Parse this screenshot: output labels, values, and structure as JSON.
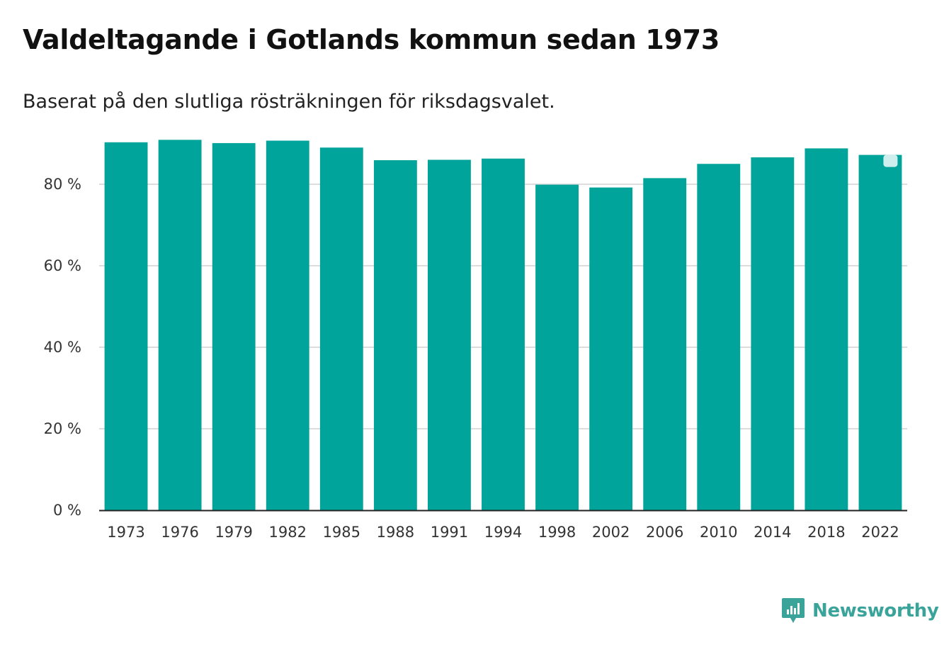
{
  "header": {
    "title": "Valdeltagande i Gotlands kommun sedan 1973",
    "subtitle": "Baserat på den slutliga rösträkningen för riksdagsvalet."
  },
  "brand": {
    "name": "Newsworthy",
    "color": "#3aa39a",
    "icon": "newsworthy-logo-icon"
  },
  "chart_data": {
    "type": "bar",
    "title": "Valdeltagande i Gotlands kommun sedan 1973",
    "subtitle": "Baserat på den slutliga rösträkningen för riksdagsvalet.",
    "categories": [
      "1973",
      "1976",
      "1979",
      "1982",
      "1985",
      "1988",
      "1991",
      "1994",
      "1998",
      "2002",
      "2006",
      "2010",
      "2014",
      "2018",
      "2022"
    ],
    "values": [
      90.3,
      90.9,
      90.1,
      90.7,
      89.0,
      85.9,
      86.0,
      86.3,
      79.9,
      79.2,
      81.5,
      85.0,
      86.6,
      88.8,
      87.2
    ],
    "highlight_last": true,
    "xlabel": "",
    "ylabel": "",
    "ylim": [
      0,
      100
    ],
    "yticks": [
      0,
      20,
      40,
      60,
      80
    ],
    "ytick_suffix": " %",
    "grid": true,
    "bar_color": "#00a49a",
    "grid_color": "#dddddd",
    "axis_color": "#222222",
    "highlight_marker_color": "#cfeeee"
  }
}
